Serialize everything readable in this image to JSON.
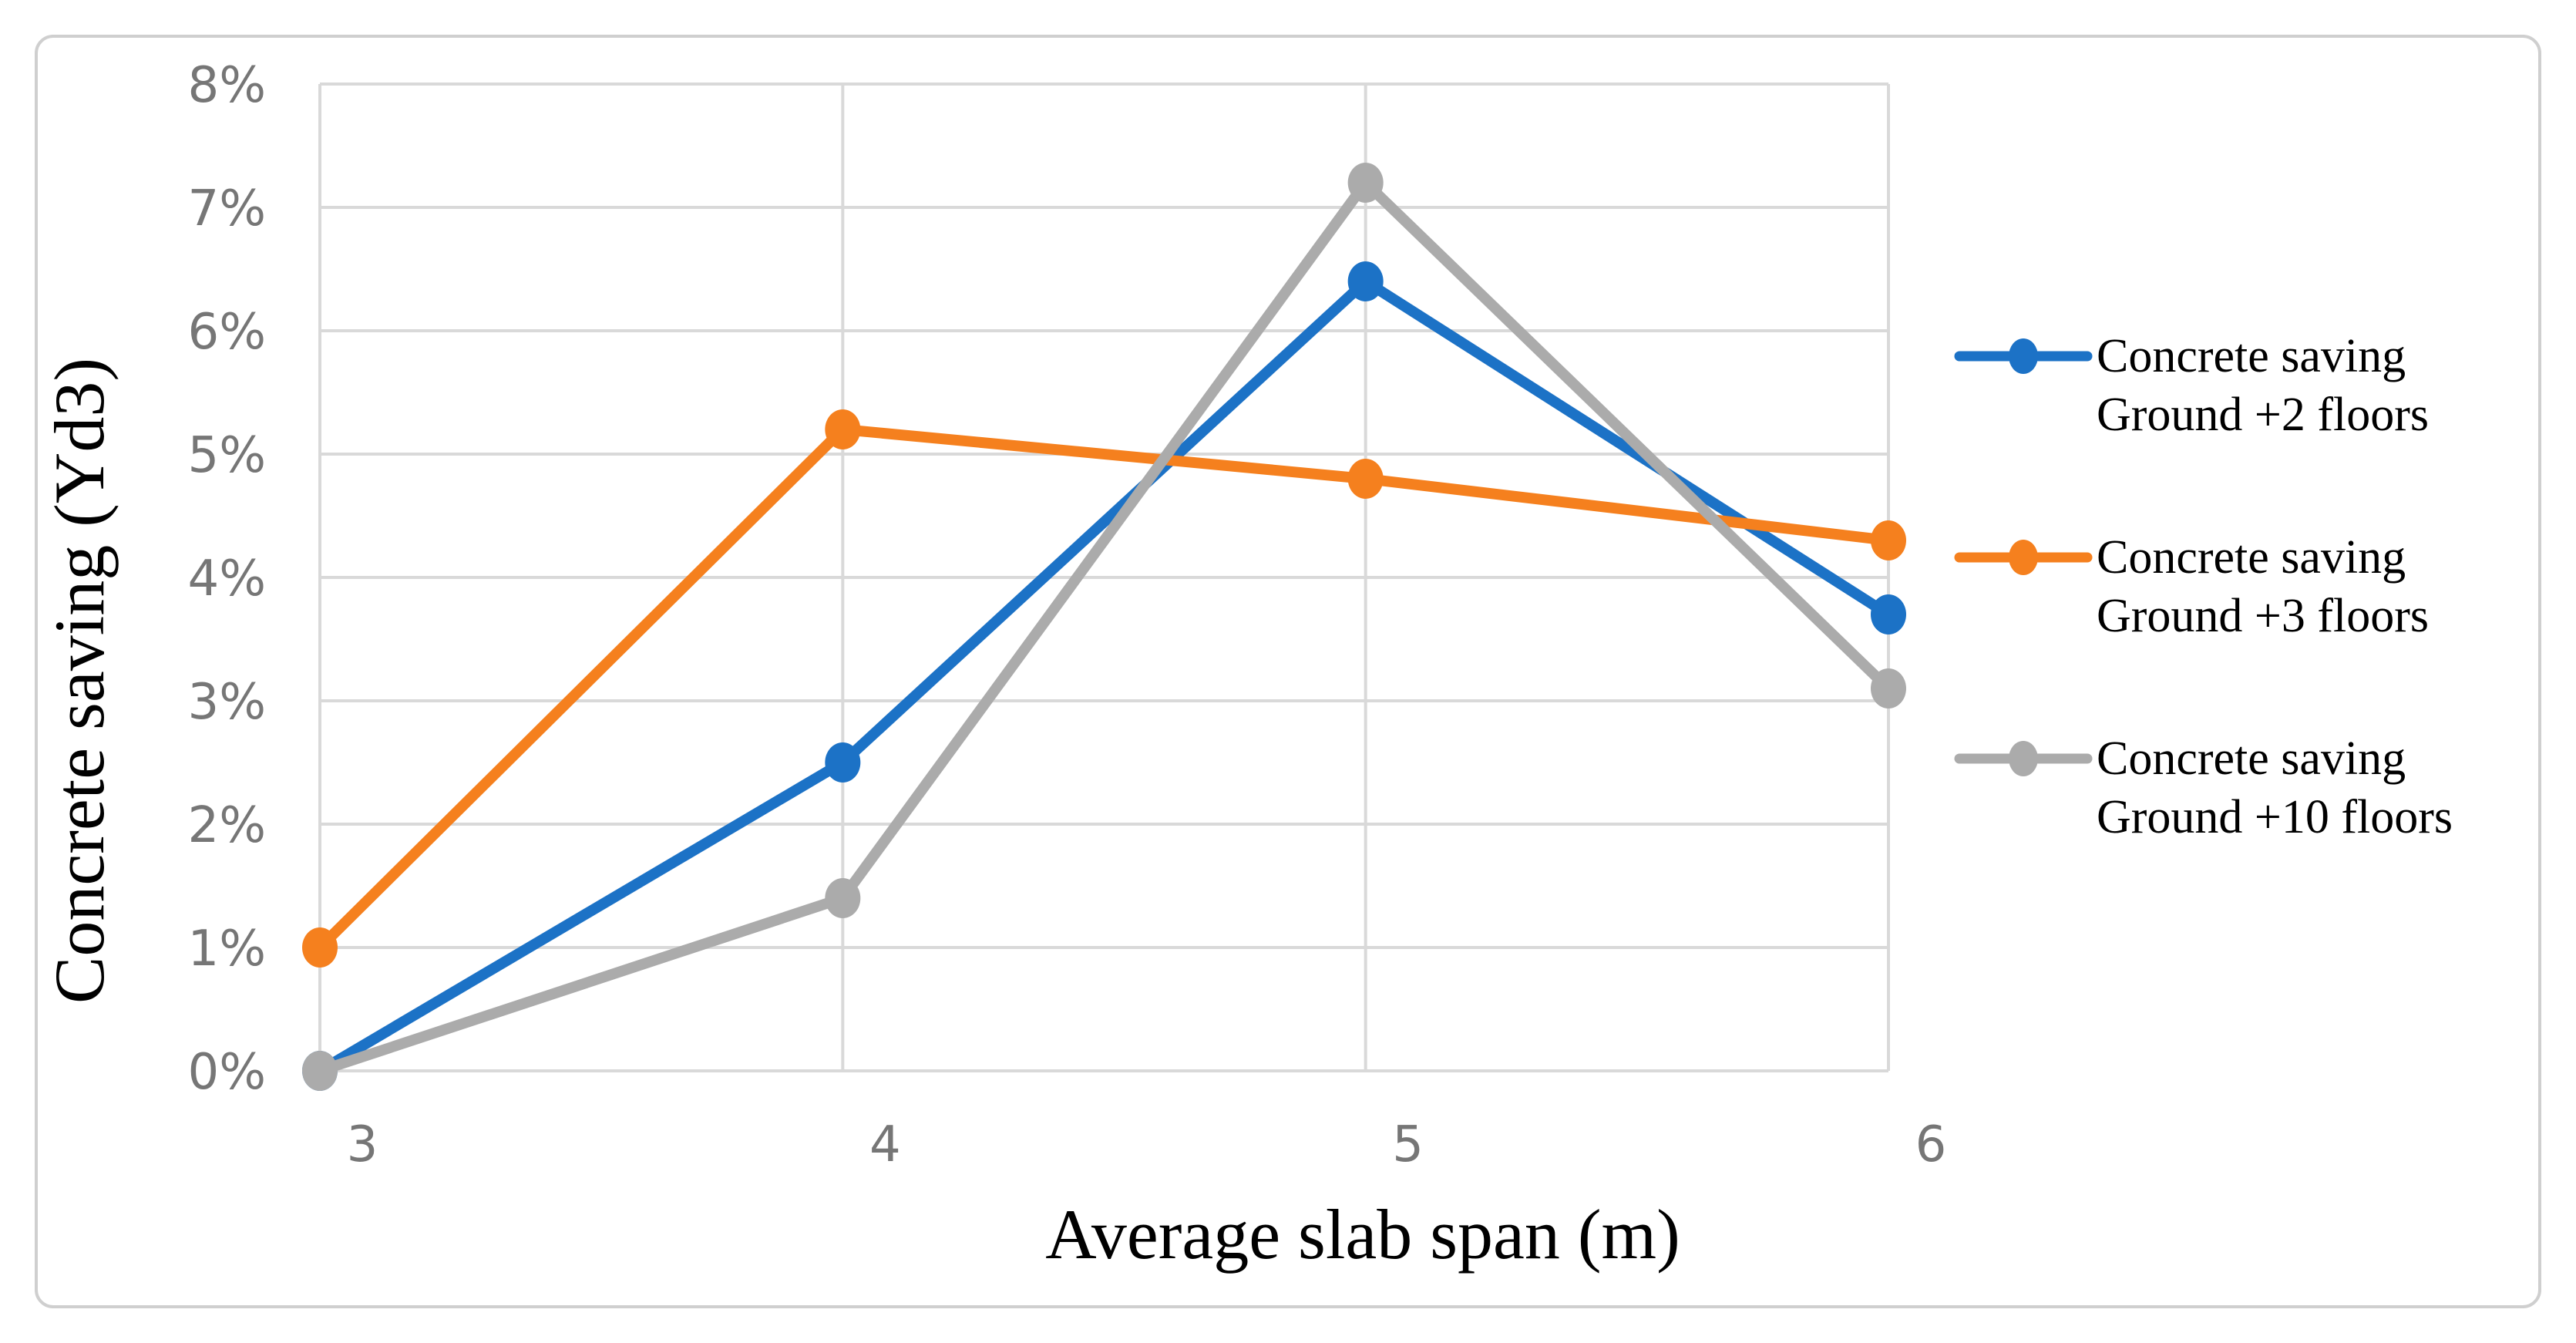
{
  "figure": {
    "background": "#FFFFFF",
    "border_color": "#CFCFCF"
  },
  "chart_data": {
    "type": "line",
    "title": "",
    "xlabel": "Average slab span (m)",
    "ylabel": "Concrete saving (Yd3)",
    "x": [
      3,
      4,
      5,
      6
    ],
    "x_tick_labels": [
      "3",
      "4",
      "5",
      "6"
    ],
    "xlim": [
      3,
      6
    ],
    "ylim": [
      0,
      8
    ],
    "y_ticks": [
      0,
      1,
      2,
      3,
      4,
      5,
      6,
      7,
      8
    ],
    "y_tick_labels": [
      "0%",
      "1%",
      "2%",
      "3%",
      "4%",
      "5%",
      "6%",
      "7%",
      "8%"
    ],
    "grid": true,
    "gridline_color": "#D9D9D9",
    "tick_label_color": "#767676",
    "legend_position": "right",
    "series": [
      {
        "name": "Concrete saving Ground +2 floors",
        "legend_lines": [
          "Concrete saving",
          "Ground +2 floors"
        ],
        "color": "#1C72C6",
        "values": [
          0.0,
          2.5,
          6.4,
          3.7
        ]
      },
      {
        "name": "Concrete saving Ground +3 floors",
        "legend_lines": [
          "Concrete saving",
          "Ground +3 floors"
        ],
        "color": "#F5801E",
        "values": [
          1.0,
          5.2,
          4.8,
          4.3
        ]
      },
      {
        "name": "Concrete saving Ground +10 floors",
        "legend_lines": [
          "Concrete saving",
          "Ground +10 floors"
        ],
        "color": "#ABABAB",
        "values": [
          0.0,
          1.4,
          7.2,
          3.1
        ]
      }
    ]
  }
}
